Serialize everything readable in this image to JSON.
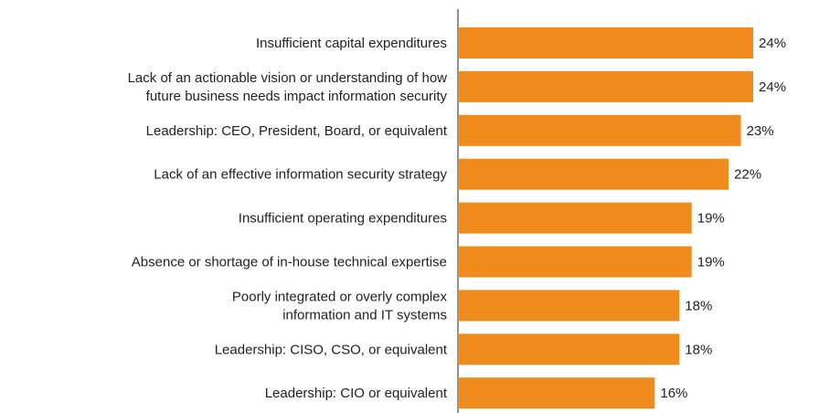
{
  "chart_data": {
    "type": "hbar",
    "categories": [
      "Insufficient capital expenditures",
      "Lack of an actionable vision or understanding of how\nfuture business needs impact information security",
      "Leadership: CEO, President, Board, or equivalent",
      "Lack of an effective information security strategy",
      "Insufficient operating expenditures",
      "Absence or shortage of in-house technical expertise",
      "Poorly integrated or overly complex\ninformation and IT systems",
      "Leadership: CISO, CSO, or equivalent",
      "Leadership: CIO or equivalent"
    ],
    "values": [
      24,
      24,
      23,
      22,
      19,
      19,
      18,
      18,
      16
    ],
    "value_labels": [
      "24%",
      "24%",
      "23%",
      "22%",
      "19%",
      "19%",
      "18%",
      "18%",
      "16%"
    ],
    "color": "#f08c1e",
    "xlim": [
      0,
      25
    ]
  }
}
